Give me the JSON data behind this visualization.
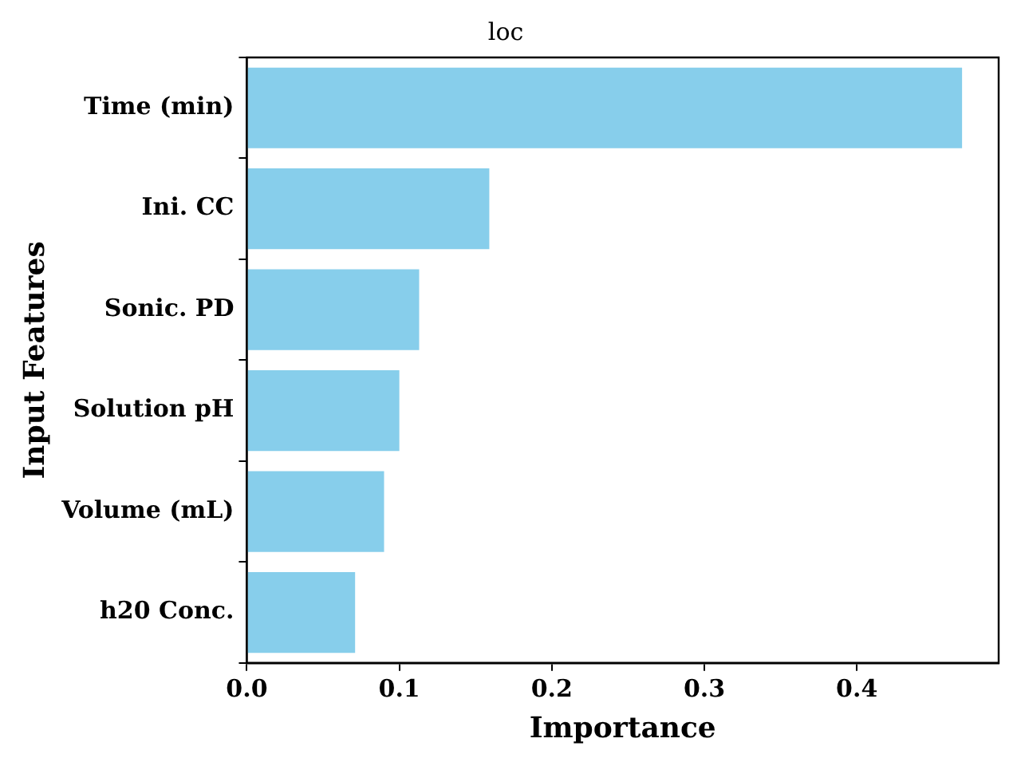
{
  "chart_data": {
    "type": "bar",
    "orientation": "horizontal",
    "title": "loc",
    "xlabel": "Importance",
    "ylabel": "Input Features",
    "categories": [
      "Time (min)",
      "Ini. CC",
      "Sonic. PD",
      "Solution pH",
      "Volume (mL)",
      "h20 Conc."
    ],
    "values": [
      0.469,
      0.159,
      0.113,
      0.1,
      0.09,
      0.071
    ],
    "color": "#87ceeb",
    "xlim": [
      0,
      0.493
    ],
    "xticks": [
      {
        "value": 0,
        "label": "0.0"
      },
      {
        "value": 0.1,
        "label": "0.1"
      },
      {
        "value": 0.2,
        "label": "0.2"
      },
      {
        "value": 0.3,
        "label": "0.3"
      },
      {
        "value": 0.4,
        "label": "0.4"
      }
    ],
    "grid": false,
    "legend": false
  }
}
